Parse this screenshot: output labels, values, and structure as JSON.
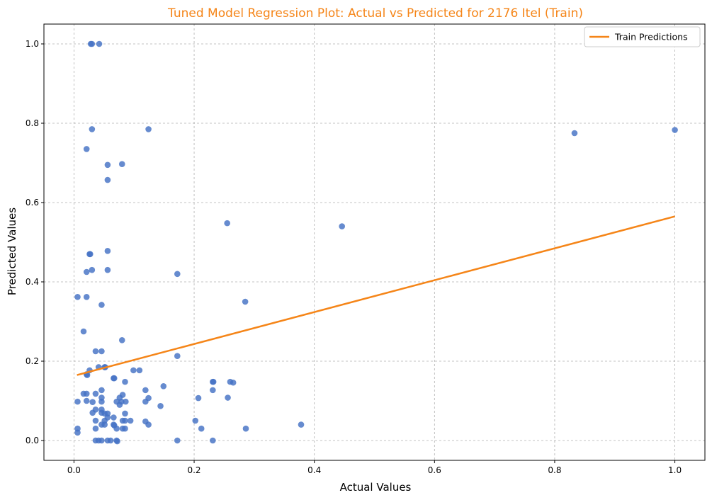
{
  "chart_data": {
    "type": "scatter",
    "title": "Tuned Model Regression Plot: Actual vs Predicted for 2176 Itel (Train)",
    "xlabel": "Actual Values",
    "ylabel": "Predicted Values",
    "xlim": [
      -0.05,
      1.05
    ],
    "ylim": [
      -0.05,
      1.05
    ],
    "xticks": [
      0.0,
      0.2,
      0.4,
      0.6,
      0.8,
      1.0
    ],
    "xtick_labels": [
      "0.0",
      "0.2",
      "0.4",
      "0.6",
      "0.8",
      "1.0"
    ],
    "yticks": [
      0.0,
      0.2,
      0.4,
      0.6,
      0.8,
      1.0
    ],
    "ytick_labels": [
      "0.0",
      "0.2",
      "0.4",
      "0.6",
      "0.8",
      "1.0"
    ],
    "grid": true,
    "legend_position": "top-right",
    "points_color": "#4472c4",
    "line_color": "#f58518",
    "points": [
      {
        "x": 0.028,
        "y": 1.0
      },
      {
        "x": 0.03,
        "y": 1.0
      },
      {
        "x": 0.042,
        "y": 1.0
      },
      {
        "x": 0.03,
        "y": 0.785
      },
      {
        "x": 0.124,
        "y": 0.785
      },
      {
        "x": 0.021,
        "y": 0.735
      },
      {
        "x": 0.056,
        "y": 0.695
      },
      {
        "x": 0.08,
        "y": 0.697
      },
      {
        "x": 0.056,
        "y": 0.657
      },
      {
        "x": 0.255,
        "y": 0.548
      },
      {
        "x": 0.446,
        "y": 0.54
      },
      {
        "x": 0.056,
        "y": 0.478
      },
      {
        "x": 0.026,
        "y": 0.47
      },
      {
        "x": 0.027,
        "y": 0.47
      },
      {
        "x": 0.03,
        "y": 0.43
      },
      {
        "x": 0.056,
        "y": 0.43
      },
      {
        "x": 0.021,
        "y": 0.425
      },
      {
        "x": 0.172,
        "y": 0.42
      },
      {
        "x": 0.006,
        "y": 0.362
      },
      {
        "x": 0.021,
        "y": 0.362
      },
      {
        "x": 0.285,
        "y": 0.35
      },
      {
        "x": 0.046,
        "y": 0.342
      },
      {
        "x": 0.016,
        "y": 0.275
      },
      {
        "x": 0.08,
        "y": 0.253
      },
      {
        "x": 0.036,
        "y": 0.225
      },
      {
        "x": 0.046,
        "y": 0.225
      },
      {
        "x": 0.172,
        "y": 0.213
      },
      {
        "x": 0.041,
        "y": 0.185
      },
      {
        "x": 0.051,
        "y": 0.185
      },
      {
        "x": 0.052,
        "y": 0.185
      },
      {
        "x": 0.026,
        "y": 0.177
      },
      {
        "x": 0.099,
        "y": 0.177
      },
      {
        "x": 0.109,
        "y": 0.177
      },
      {
        "x": 0.021,
        "y": 0.167
      },
      {
        "x": 0.022,
        "y": 0.165
      },
      {
        "x": 0.066,
        "y": 0.157
      },
      {
        "x": 0.067,
        "y": 0.157
      },
      {
        "x": 0.085,
        "y": 0.148
      },
      {
        "x": 0.231,
        "y": 0.148
      },
      {
        "x": 0.232,
        "y": 0.148
      },
      {
        "x": 0.26,
        "y": 0.148
      },
      {
        "x": 0.265,
        "y": 0.146
      },
      {
        "x": 0.149,
        "y": 0.137
      },
      {
        "x": 0.046,
        "y": 0.127
      },
      {
        "x": 0.119,
        "y": 0.127
      },
      {
        "x": 0.231,
        "y": 0.127
      },
      {
        "x": 0.016,
        "y": 0.118
      },
      {
        "x": 0.021,
        "y": 0.118
      },
      {
        "x": 0.036,
        "y": 0.118
      },
      {
        "x": 0.081,
        "y": 0.115
      },
      {
        "x": 0.046,
        "y": 0.108
      },
      {
        "x": 0.076,
        "y": 0.108
      },
      {
        "x": 0.124,
        "y": 0.107
      },
      {
        "x": 0.207,
        "y": 0.107
      },
      {
        "x": 0.256,
        "y": 0.108
      },
      {
        "x": 0.006,
        "y": 0.098
      },
      {
        "x": 0.021,
        "y": 0.1
      },
      {
        "x": 0.031,
        "y": 0.097
      },
      {
        "x": 0.046,
        "y": 0.098
      },
      {
        "x": 0.071,
        "y": 0.098
      },
      {
        "x": 0.079,
        "y": 0.098
      },
      {
        "x": 0.086,
        "y": 0.098
      },
      {
        "x": 0.119,
        "y": 0.098
      },
      {
        "x": 0.076,
        "y": 0.09
      },
      {
        "x": 0.144,
        "y": 0.087
      },
      {
        "x": 0.036,
        "y": 0.078
      },
      {
        "x": 0.046,
        "y": 0.078
      },
      {
        "x": 0.031,
        "y": 0.07
      },
      {
        "x": 0.046,
        "y": 0.07
      },
      {
        "x": 0.051,
        "y": 0.068
      },
      {
        "x": 0.056,
        "y": 0.068
      },
      {
        "x": 0.085,
        "y": 0.068
      },
      {
        "x": 0.066,
        "y": 0.058
      },
      {
        "x": 0.056,
        "y": 0.058
      },
      {
        "x": 0.036,
        "y": 0.05
      },
      {
        "x": 0.051,
        "y": 0.05
      },
      {
        "x": 0.081,
        "y": 0.05
      },
      {
        "x": 0.085,
        "y": 0.05
      },
      {
        "x": 0.094,
        "y": 0.05
      },
      {
        "x": 0.119,
        "y": 0.048
      },
      {
        "x": 0.202,
        "y": 0.05
      },
      {
        "x": 0.046,
        "y": 0.04
      },
      {
        "x": 0.051,
        "y": 0.04
      },
      {
        "x": 0.066,
        "y": 0.04
      },
      {
        "x": 0.067,
        "y": 0.038
      },
      {
        "x": 0.124,
        "y": 0.04
      },
      {
        "x": 0.378,
        "y": 0.04
      },
      {
        "x": 0.006,
        "y": 0.03
      },
      {
        "x": 0.036,
        "y": 0.03
      },
      {
        "x": 0.071,
        "y": 0.03
      },
      {
        "x": 0.081,
        "y": 0.03
      },
      {
        "x": 0.085,
        "y": 0.03
      },
      {
        "x": 0.212,
        "y": 0.03
      },
      {
        "x": 0.286,
        "y": 0.03
      },
      {
        "x": 0.006,
        "y": 0.02
      },
      {
        "x": 0.036,
        "y": 0.0
      },
      {
        "x": 0.041,
        "y": 0.0
      },
      {
        "x": 0.046,
        "y": 0.0
      },
      {
        "x": 0.056,
        "y": 0.0
      },
      {
        "x": 0.061,
        "y": 0.0
      },
      {
        "x": 0.071,
        "y": 0.0
      },
      {
        "x": 0.072,
        "y": -0.002
      },
      {
        "x": 0.172,
        "y": 0.0
      },
      {
        "x": 0.231,
        "y": 0.0
      },
      {
        "x": 0.833,
        "y": 0.775
      },
      {
        "x": 1.0,
        "y": 0.783
      }
    ],
    "series": [
      {
        "name": "Train Predictions",
        "x": [
          0.005,
          1.0
        ],
        "y": [
          0.165,
          0.565
        ]
      }
    ]
  }
}
